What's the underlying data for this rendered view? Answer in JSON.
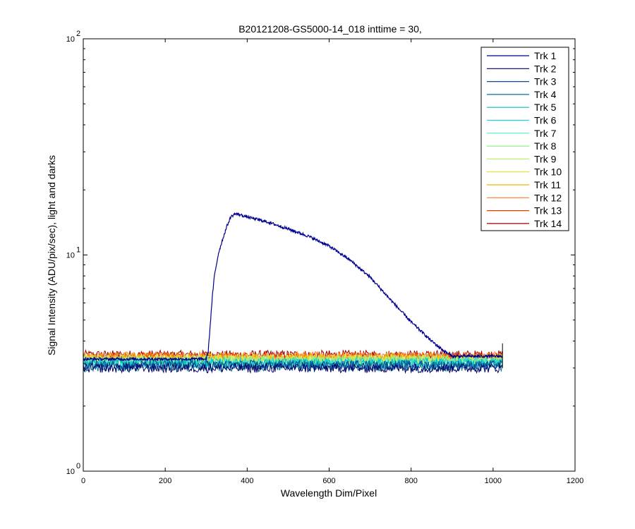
{
  "chart_data": {
    "type": "line",
    "title": "B20121208-GS5000-14_018 inttime = 30,",
    "xlabel": "Wavelength Dim/Pixel",
    "ylabel": "Signal Intensity (ADU/pix/sec), light and darks",
    "xlim": [
      0,
      1200
    ],
    "ylim": [
      1,
      100
    ],
    "yscale": "log",
    "xticks": [
      0,
      200,
      400,
      600,
      800,
      1000,
      1200
    ],
    "yticks": [
      {
        "value": 1,
        "base": "10",
        "exp": "0"
      },
      {
        "value": 10,
        "base": "10",
        "exp": "1"
      },
      {
        "value": 100,
        "base": "10",
        "exp": "2"
      }
    ],
    "grid": false,
    "legend_position": "top-right",
    "series": [
      {
        "name": "Trk 1",
        "color": "#00008F"
      },
      {
        "name": "Trk 2",
        "color": "#00006A"
      },
      {
        "name": "Trk 3",
        "color": "#004B9A"
      },
      {
        "name": "Trk 4",
        "color": "#00758F"
      },
      {
        "name": "Trk 5",
        "color": "#00BFBF"
      },
      {
        "name": "Trk 6",
        "color": "#20D2D2"
      },
      {
        "name": "Trk 7",
        "color": "#55E8C8"
      },
      {
        "name": "Trk 8",
        "color": "#8FF08F"
      },
      {
        "name": "Trk 9",
        "color": "#C4EE70"
      },
      {
        "name": "Trk 10",
        "color": "#E6E630"
      },
      {
        "name": "Trk 11",
        "color": "#F0B400"
      },
      {
        "name": "Trk 12",
        "color": "#FF7A30"
      },
      {
        "name": "Trk 13",
        "color": "#E63A00"
      },
      {
        "name": "Trk 14",
        "color": "#9A0000"
      }
    ],
    "signal_curve": {
      "series": "Trk 1",
      "x": [
        0,
        300,
        305,
        310,
        315,
        320,
        330,
        340,
        350,
        360,
        370,
        380,
        400,
        450,
        500,
        550,
        600,
        650,
        700,
        750,
        800,
        850,
        880,
        900,
        1023
      ],
      "y": [
        3.3,
        3.3,
        3.6,
        4.8,
        6.4,
        8.0,
        10.2,
        11.8,
        13.5,
        15.0,
        15.5,
        15.4,
        15.0,
        14.2,
        13.2,
        12.2,
        11.0,
        9.5,
        7.9,
        6.2,
        4.9,
        4.0,
        3.6,
        3.4,
        3.4
      ]
    },
    "dark_levels": {
      "x_range": [
        0,
        1023
      ],
      "baseline": [
        3.3,
        3.0,
        3.1,
        3.05,
        3.15,
        3.2,
        3.18,
        3.25,
        3.28,
        3.3,
        3.35,
        3.4,
        3.38,
        3.45
      ],
      "noise": 0.05
    }
  }
}
